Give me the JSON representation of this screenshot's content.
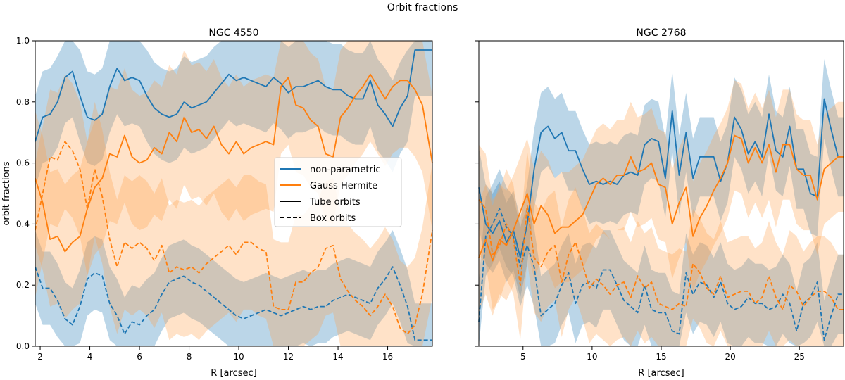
{
  "figure": {
    "suptitle": "Orbit fractions",
    "ylabel": "orbit fractions",
    "legend": [
      {
        "label": "non-parametric",
        "color": "#1f77b4",
        "style": "solid"
      },
      {
        "label": "Gauss Hermite",
        "color": "#ff7f0e",
        "style": "solid"
      },
      {
        "label": "Tube orbits",
        "color": "#000000",
        "style": "solid"
      },
      {
        "label": "Box orbits",
        "color": "#000000",
        "style": "dashed"
      }
    ]
  },
  "chart_data": [
    {
      "type": "line",
      "title": "NGC 4550",
      "xlabel": "R [arcsec]",
      "ylabel": "orbit fractions",
      "xlim": [
        1.8,
        17.8
      ],
      "ylim": [
        0,
        1.0
      ],
      "xticks": [
        2,
        4,
        6,
        8,
        10,
        12,
        14,
        16
      ],
      "yticks": [
        0.0,
        0.2,
        0.4,
        0.6,
        0.8,
        1.0
      ],
      "ytick_labels": [
        "0.0",
        "0.2",
        "0.4",
        "0.6",
        "0.8",
        "1.0"
      ],
      "legend_position": "center-right",
      "x": [
        1.8,
        2.1,
        2.4,
        2.7,
        3.0,
        3.3,
        3.6,
        3.9,
        4.2,
        4.5,
        4.8,
        5.1,
        5.4,
        5.7,
        6.0,
        6.3,
        6.6,
        6.9,
        7.2,
        7.5,
        7.8,
        8.1,
        8.4,
        8.7,
        9.0,
        9.3,
        9.6,
        9.9,
        10.2,
        10.5,
        10.8,
        11.1,
        11.4,
        11.7,
        12.0,
        12.3,
        12.6,
        12.9,
        13.2,
        13.5,
        13.8,
        14.1,
        14.4,
        14.7,
        15.0,
        15.3,
        15.6,
        15.9,
        16.2,
        16.5,
        16.8,
        17.1,
        17.4,
        17.8
      ],
      "series": [
        {
          "name": "non-parametric tube",
          "color": "#1f77b4",
          "dash": false,
          "band": 0.15,
          "values": [
            0.67,
            0.75,
            0.76,
            0.8,
            0.88,
            0.9,
            0.82,
            0.75,
            0.74,
            0.76,
            0.85,
            0.91,
            0.87,
            0.88,
            0.87,
            0.82,
            0.78,
            0.76,
            0.75,
            0.76,
            0.8,
            0.78,
            0.79,
            0.8,
            0.83,
            0.86,
            0.89,
            0.87,
            0.88,
            0.87,
            0.86,
            0.85,
            0.88,
            0.86,
            0.83,
            0.85,
            0.85,
            0.86,
            0.87,
            0.85,
            0.84,
            0.84,
            0.82,
            0.81,
            0.81,
            0.87,
            0.79,
            0.76,
            0.72,
            0.78,
            0.82,
            0.97,
            0.97,
            0.97
          ]
        },
        {
          "name": "non-parametric box",
          "color": "#1f77b4",
          "dash": true,
          "band": 0.12,
          "values": [
            0.26,
            0.19,
            0.19,
            0.15,
            0.09,
            0.07,
            0.13,
            0.22,
            0.24,
            0.23,
            0.14,
            0.1,
            0.04,
            0.08,
            0.07,
            0.1,
            0.12,
            0.17,
            0.21,
            0.22,
            0.23,
            0.21,
            0.2,
            0.18,
            0.16,
            0.14,
            0.12,
            0.1,
            0.09,
            0.1,
            0.11,
            0.12,
            0.11,
            0.1,
            0.11,
            0.12,
            0.13,
            0.12,
            0.13,
            0.13,
            0.15,
            0.16,
            0.17,
            0.16,
            0.15,
            0.14,
            0.19,
            0.22,
            0.26,
            0.2,
            0.13,
            0.02,
            0.02,
            0.02
          ]
        },
        {
          "name": "Gauss Hermite tube",
          "color": "#ff7f0e",
          "dash": false,
          "band": 0.22,
          "values": [
            0.55,
            0.47,
            0.35,
            0.36,
            0.31,
            0.34,
            0.36,
            0.45,
            0.52,
            0.55,
            0.63,
            0.62,
            0.69,
            0.62,
            0.6,
            0.61,
            0.65,
            0.63,
            0.7,
            0.67,
            0.75,
            0.7,
            0.71,
            0.68,
            0.72,
            0.66,
            0.63,
            0.67,
            0.63,
            0.65,
            0.66,
            0.67,
            0.66,
            0.85,
            0.88,
            0.79,
            0.78,
            0.74,
            0.72,
            0.63,
            0.62,
            0.75,
            0.78,
            0.82,
            0.85,
            0.89,
            0.85,
            0.81,
            0.85,
            0.87,
            0.87,
            0.84,
            0.79,
            0.6
          ]
        },
        {
          "name": "Gauss Hermite box",
          "color": "#ff7f0e",
          "dash": true,
          "band": 0.22,
          "values": [
            0.38,
            0.5,
            0.62,
            0.61,
            0.67,
            0.64,
            0.58,
            0.45,
            0.58,
            0.49,
            0.35,
            0.26,
            0.34,
            0.32,
            0.34,
            0.32,
            0.28,
            0.33,
            0.24,
            0.26,
            0.25,
            0.26,
            0.24,
            0.27,
            0.29,
            0.31,
            0.33,
            0.3,
            0.34,
            0.34,
            0.32,
            0.31,
            0.13,
            0.12,
            0.12,
            0.21,
            0.21,
            0.24,
            0.26,
            0.32,
            0.33,
            0.22,
            0.18,
            0.15,
            0.13,
            0.1,
            0.13,
            0.17,
            0.13,
            0.06,
            0.04,
            0.07,
            0.17,
            0.38
          ]
        }
      ]
    },
    {
      "type": "line",
      "title": "NGC 2768",
      "xlabel": "R [arcsec]",
      "ylabel": "",
      "xlim": [
        1.8,
        28.2
      ],
      "ylim": [
        0,
        1.0
      ],
      "xticks": [
        5,
        10,
        15,
        20,
        25
      ],
      "yticks": [
        0.0,
        0.2,
        0.4,
        0.6,
        0.8,
        1.0
      ],
      "ytick_labels": [],
      "x": [
        1.8,
        2.3,
        2.8,
        3.3,
        3.8,
        4.3,
        4.8,
        5.3,
        5.8,
        6.3,
        6.8,
        7.3,
        7.8,
        8.3,
        8.8,
        9.3,
        9.8,
        10.3,
        10.8,
        11.3,
        11.8,
        12.3,
        12.8,
        13.3,
        13.8,
        14.3,
        14.8,
        15.3,
        15.8,
        16.3,
        16.8,
        17.3,
        17.8,
        18.3,
        18.8,
        19.3,
        19.8,
        20.3,
        20.8,
        21.3,
        21.8,
        22.3,
        22.8,
        23.3,
        23.8,
        24.3,
        24.8,
        25.3,
        25.8,
        26.3,
        26.8,
        27.3,
        27.8,
        28.2
      ],
      "series": [
        {
          "name": "non-parametric tube",
          "color": "#1f77b4",
          "dash": false,
          "band": 0.13,
          "values": [
            0.52,
            0.4,
            0.37,
            0.41,
            0.34,
            0.38,
            0.29,
            0.4,
            0.58,
            0.7,
            0.72,
            0.68,
            0.7,
            0.64,
            0.64,
            0.58,
            0.53,
            0.54,
            0.53,
            0.54,
            0.53,
            0.56,
            0.57,
            0.56,
            0.66,
            0.68,
            0.67,
            0.55,
            0.77,
            0.56,
            0.7,
            0.55,
            0.62,
            0.62,
            0.62,
            0.54,
            0.6,
            0.75,
            0.71,
            0.63,
            0.67,
            0.62,
            0.76,
            0.64,
            0.62,
            0.72,
            0.58,
            0.58,
            0.5,
            0.49,
            0.81,
            0.71,
            0.62,
            0.62
          ]
        },
        {
          "name": "non-parametric box",
          "color": "#1f77b4",
          "dash": true,
          "band": 0.13,
          "values": [
            0.08,
            0.36,
            0.4,
            0.45,
            0.39,
            0.36,
            0.26,
            0.33,
            0.26,
            0.1,
            0.12,
            0.14,
            0.2,
            0.24,
            0.14,
            0.2,
            0.21,
            0.19,
            0.25,
            0.25,
            0.2,
            0.15,
            0.13,
            0.11,
            0.2,
            0.12,
            0.11,
            0.11,
            0.05,
            0.04,
            0.24,
            0.17,
            0.21,
            0.2,
            0.16,
            0.21,
            0.14,
            0.12,
            0.13,
            0.16,
            0.14,
            0.14,
            0.12,
            0.13,
            0.17,
            0.14,
            0.05,
            0.14,
            0.16,
            0.21,
            0.02,
            0.1,
            0.17,
            0.17
          ]
        },
        {
          "name": "Gauss Hermite tube",
          "color": "#ff7f0e",
          "dash": false,
          "band": 0.18,
          "values": [
            0.29,
            0.35,
            0.28,
            0.35,
            0.33,
            0.38,
            0.44,
            0.5,
            0.4,
            0.46,
            0.43,
            0.37,
            0.39,
            0.39,
            0.41,
            0.43,
            0.48,
            0.53,
            0.55,
            0.53,
            0.56,
            0.56,
            0.62,
            0.57,
            0.58,
            0.6,
            0.53,
            0.52,
            0.4,
            0.47,
            0.52,
            0.36,
            0.42,
            0.46,
            0.51,
            0.55,
            0.6,
            0.69,
            0.68,
            0.6,
            0.65,
            0.6,
            0.66,
            0.57,
            0.66,
            0.66,
            0.58,
            0.56,
            0.56,
            0.48,
            0.58,
            0.6,
            0.62,
            0.62
          ]
        },
        {
          "name": "Gauss Hermite box",
          "color": "#ff7f0e",
          "dash": true,
          "band": 0.18,
          "values": [
            0.48,
            0.45,
            0.3,
            0.33,
            0.4,
            0.35,
            0.2,
            0.46,
            0.29,
            0.26,
            0.31,
            0.33,
            0.21,
            0.3,
            0.34,
            0.27,
            0.19,
            0.22,
            0.2,
            0.17,
            0.2,
            0.21,
            0.16,
            0.23,
            0.19,
            0.21,
            0.14,
            0.13,
            0.12,
            0.14,
            0.13,
            0.27,
            0.24,
            0.19,
            0.17,
            0.23,
            0.16,
            0.17,
            0.18,
            0.18,
            0.14,
            0.16,
            0.23,
            0.16,
            0.12,
            0.2,
            0.18,
            0.13,
            0.16,
            0.18,
            0.18,
            0.16,
            0.12,
            0.12
          ]
        }
      ]
    }
  ]
}
